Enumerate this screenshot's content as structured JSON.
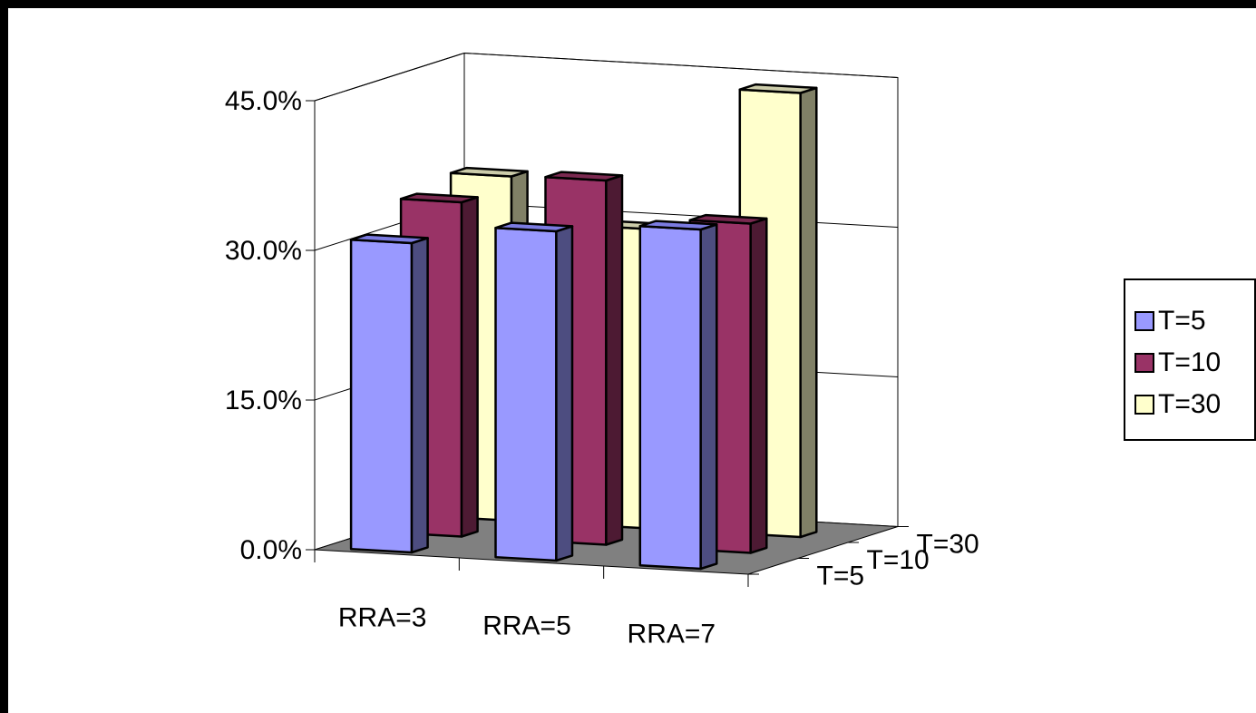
{
  "chart_data": {
    "type": "bar",
    "subtype": "3d-column",
    "categories": [
      "RRA=3",
      "RRA=5",
      "RRA=7"
    ],
    "depth_categories": [
      "T=5",
      "T=10",
      "T=30"
    ],
    "series": [
      {
        "name": "T=5",
        "values": [
          31.0,
          33.0,
          34.0
        ]
      },
      {
        "name": "T=10",
        "values": [
          33.5,
          36.5,
          33.0
        ]
      },
      {
        "name": "T=30",
        "values": [
          34.5,
          30.0,
          44.5
        ]
      }
    ],
    "ylim": [
      0,
      45
    ],
    "yticks": [
      "0.0%",
      "15.0%",
      "30.0%",
      "45.0%"
    ],
    "gridlines": true,
    "legend_position": "right",
    "colors": {
      "T=5": {
        "front": "#9999ff",
        "top": "#7b7be0",
        "side": "#4d4d80"
      },
      "T=10": {
        "front": "#993366",
        "top": "#7a2950",
        "side": "#4d1a33"
      },
      "T=30": {
        "front": "#ffffcc",
        "top": "#ccccaa",
        "side": "#808066"
      },
      "floor": "#808080",
      "walls": "#ffffff"
    }
  }
}
